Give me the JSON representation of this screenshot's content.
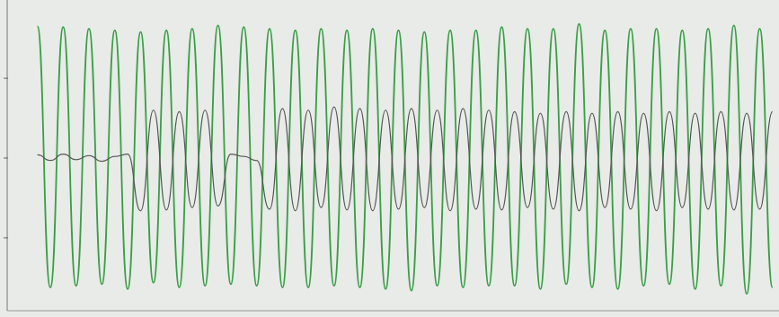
{
  "chart_data": {
    "type": "line",
    "x": [
      0,
      1,
      2,
      3,
      4,
      5,
      6,
      7,
      8,
      9,
      10,
      11,
      12,
      13,
      14,
      15,
      16,
      17,
      18,
      19,
      20,
      21,
      22,
      23,
      24,
      25,
      26,
      27,
      28,
      29,
      30,
      31,
      32,
      33,
      34,
      35,
      36,
      37,
      38,
      39,
      40,
      41,
      42,
      43,
      44,
      45,
      46,
      47,
      48,
      49,
      50,
      51,
      52,
      53,
      54,
      55,
      56,
      57
    ],
    "xlim": [
      -2.9,
      57.5
    ],
    "ylim": [
      -1.98,
      1.98
    ],
    "yticks": [
      -1,
      0,
      1
    ],
    "series": [
      {
        "color": "#3a9e48",
        "values": [
          1.65,
          -1.62,
          1.64,
          -1.6,
          1.62,
          -1.58,
          1.6,
          -1.64,
          1.58,
          -1.56,
          1.6,
          -1.62,
          1.62,
          -1.6,
          1.66,
          -1.58,
          1.64,
          -1.6,
          1.62,
          -1.62,
          1.6,
          -1.62,
          1.62,
          -1.6,
          1.6,
          -1.62,
          1.62,
          -1.64,
          1.6,
          -1.66,
          1.58,
          -1.6,
          1.6,
          -1.62,
          1.6,
          -1.6,
          1.64,
          -1.6,
          1.62,
          -1.64,
          1.62,
          -1.58,
          1.68,
          -1.62,
          1.6,
          -1.64,
          1.62,
          -1.6,
          1.62,
          -1.58,
          1.6,
          -1.64,
          1.62,
          -1.6,
          1.66,
          -1.7,
          1.62,
          -1.62
        ]
      },
      {
        "color": "#555555",
        "values": [
          0.04,
          -0.03,
          0.05,
          -0.02,
          0.03,
          -0.04,
          0.02,
          0.05,
          -0.66,
          0.6,
          -0.65,
          0.58,
          -0.62,
          0.6,
          -0.6,
          0.05,
          0.02,
          -0.03,
          -0.64,
          0.62,
          -0.66,
          0.6,
          -0.62,
          0.64,
          -0.65,
          0.62,
          -0.66,
          0.6,
          -0.64,
          0.62,
          -0.62,
          0.6,
          -0.66,
          0.62,
          -0.64,
          0.6,
          -0.65,
          0.58,
          -0.62,
          0.56,
          -0.64,
          0.58,
          -0.66,
          0.56,
          -0.62,
          0.58,
          -0.64,
          0.56,
          -0.66,
          0.58,
          -0.62,
          0.56,
          -0.64,
          0.58,
          -0.65,
          0.56,
          -0.64,
          0.58
        ]
      }
    ]
  }
}
